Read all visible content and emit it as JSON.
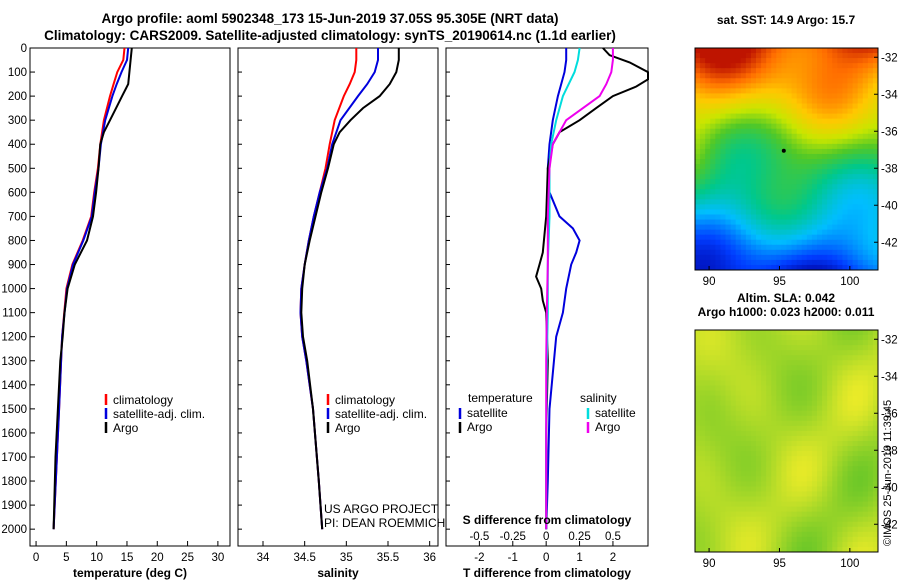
{
  "header": {
    "line1": "Argo profile: aoml 5902348_173 15-Jun-2019 37.05S 95.305E (NRT data)",
    "line2": "Climatology: CARS2009. Satellite-adjusted climatology: synTS_20190614.nc (1.1d earlier)"
  },
  "colors": {
    "argo": "#000000",
    "climatology": "#ff0000",
    "satellite": "#0000dd",
    "sat_salinity": "#00dddd",
    "arg_salinity": "#ee00ee"
  },
  "watermark": "©IMOS 25-Jun-2019 11:39:45",
  "credit": {
    "line1": "US ARGO PROJECT",
    "line2": "PI: DEAN ROEMMICH"
  },
  "chart_data": [
    {
      "type": "line",
      "id": "temperature",
      "xlabel": "temperature (deg C)",
      "xlim": [
        -1,
        32
      ],
      "ylim": [
        2070,
        0
      ],
      "xticks": [
        0,
        5,
        10,
        15,
        20,
        25,
        30
      ],
      "yticks": [
        0,
        100,
        200,
        300,
        400,
        500,
        600,
        700,
        800,
        900,
        1000,
        1100,
        1200,
        1300,
        1400,
        1500,
        1600,
        1700,
        1800,
        1900,
        2000
      ],
      "legend": [
        "climatology",
        "satellite-adj. clim.",
        "Argo"
      ],
      "series": [
        {
          "name": "climatology",
          "color": "#ff0000",
          "depth": [
            0,
            50,
            100,
            150,
            200,
            300,
            400,
            500,
            600,
            700,
            800,
            900,
            1000,
            1200,
            1500,
            2000
          ],
          "values": [
            14.6,
            14.4,
            13.4,
            12.8,
            12.2,
            11.2,
            10.6,
            10.2,
            9.6,
            9.1,
            7.7,
            6.0,
            5.0,
            4.3,
            3.8,
            2.9
          ]
        },
        {
          "name": "satellite-adj. clim.",
          "color": "#0000dd",
          "depth": [
            0,
            50,
            100,
            150,
            200,
            300,
            400,
            500,
            600,
            700,
            800,
            900,
            1000,
            1200,
            1500,
            2000
          ],
          "values": [
            15.2,
            15.0,
            14.1,
            13.3,
            12.6,
            11.4,
            10.7,
            10.3,
            9.7,
            9.2,
            7.8,
            6.1,
            5.1,
            4.3,
            3.8,
            2.9
          ]
        },
        {
          "name": "Argo",
          "color": "#000000",
          "depth": [
            0,
            50,
            100,
            150,
            200,
            250,
            300,
            350,
            400,
            500,
            600,
            700,
            800,
            900,
            1000,
            1100,
            1200,
            1300,
            1400,
            1500,
            1700,
            2000
          ],
          "values": [
            15.8,
            15.6,
            15.4,
            15.2,
            14.2,
            13.2,
            12.2,
            11.2,
            10.6,
            10.3,
            9.9,
            9.4,
            8.4,
            6.4,
            5.2,
            4.7,
            4.4,
            4.0,
            3.8,
            3.6,
            3.2,
            2.9
          ]
        }
      ]
    },
    {
      "type": "line",
      "id": "salinity",
      "xlabel": "salinity",
      "xlim": [
        33.7,
        36.1
      ],
      "ylim": [
        2070,
        0
      ],
      "xticks": [
        34,
        34.5,
        35,
        35.5,
        36
      ],
      "xticklabels": [
        "34",
        "34.5",
        "35",
        "35.5",
        "36"
      ],
      "legend": [
        "climatology",
        "satellite-adj. clim.",
        "Argo"
      ],
      "series": [
        {
          "name": "climatology",
          "color": "#ff0000",
          "depth": [
            0,
            50,
            100,
            150,
            200,
            300,
            400,
            500,
            600,
            700,
            800,
            900,
            1000,
            1100,
            1200,
            1300,
            1500,
            1800,
            2000
          ],
          "values": [
            35.12,
            35.12,
            35.1,
            35.04,
            34.97,
            34.86,
            34.8,
            34.75,
            34.68,
            34.61,
            34.55,
            34.5,
            34.46,
            34.45,
            34.47,
            34.52,
            34.6,
            34.67,
            34.71
          ]
        },
        {
          "name": "satellite-adj. clim.",
          "color": "#0000dd",
          "depth": [
            0,
            50,
            100,
            150,
            200,
            300,
            400,
            500,
            600,
            700,
            800,
            900,
            1000,
            1100,
            1200,
            1300,
            1500,
            1800,
            2000
          ],
          "values": [
            35.38,
            35.38,
            35.34,
            35.25,
            35.14,
            34.93,
            34.83,
            34.77,
            34.68,
            34.61,
            34.55,
            34.5,
            34.46,
            34.45,
            34.47,
            34.52,
            34.6,
            34.67,
            34.71
          ]
        },
        {
          "name": "Argo",
          "color": "#000000",
          "depth": [
            0,
            50,
            100,
            150,
            200,
            250,
            300,
            350,
            400,
            500,
            600,
            700,
            800,
            900,
            1000,
            1100,
            1200,
            1300,
            1500,
            1800,
            2000
          ],
          "values": [
            35.63,
            35.63,
            35.6,
            35.52,
            35.4,
            35.2,
            35.05,
            34.92,
            34.85,
            34.78,
            34.7,
            34.63,
            34.56,
            34.5,
            34.47,
            34.46,
            34.48,
            34.53,
            34.6,
            34.67,
            34.71
          ]
        }
      ]
    },
    {
      "type": "line",
      "id": "difference",
      "xlabel": "T difference from climatology",
      "xlabel2": "S difference from climatology",
      "xlim": [
        -3,
        3.05
      ],
      "ylim": [
        2070,
        0
      ],
      "xticks": [
        -2,
        -1,
        0,
        1,
        2
      ],
      "xticks2": [
        -2,
        -1,
        0,
        1,
        2
      ],
      "xticklabels2": [
        "-0.5",
        "-0.25",
        "0",
        "0.25",
        "0.5"
      ],
      "legend_titles": [
        "temperature",
        "salinity"
      ],
      "legend": [
        "satellite",
        "Argo",
        "satellite",
        "Argo"
      ],
      "series": [
        {
          "name": "temperature satellite",
          "color": "#0000dd",
          "depth": [
            0,
            50,
            100,
            200,
            300,
            400,
            500,
            600,
            700,
            750,
            800,
            850,
            900,
            1000,
            1100,
            1200,
            1500,
            1800,
            2000
          ],
          "values": [
            0.6,
            0.6,
            0.55,
            0.35,
            0.2,
            0.1,
            0.05,
            0.1,
            0.4,
            0.8,
            1.0,
            0.9,
            0.75,
            0.6,
            0.5,
            0.3,
            0.1,
            0.05,
            0.0
          ]
        },
        {
          "name": "temperature Argo",
          "color": "#000000",
          "depth": [
            0,
            30,
            60,
            100,
            130,
            160,
            200,
            250,
            300,
            350,
            400,
            500,
            700,
            850,
            900,
            950,
            1000,
            1050,
            1100,
            1300,
            1600,
            2000
          ],
          "values": [
            1.7,
            1.9,
            2.5,
            3.05,
            3.05,
            2.7,
            2.0,
            1.5,
            1.0,
            0.4,
            0.2,
            0.05,
            0.0,
            -0.1,
            -0.2,
            -0.3,
            -0.15,
            -0.1,
            0.0,
            0.05,
            0.0,
            0.0
          ]
        },
        {
          "name": "salinity satellite",
          "color": "#00dddd",
          "depth": [
            0,
            50,
            100,
            200,
            300,
            400,
            500,
            700,
            900,
            1100,
            1300,
            1600,
            2000
          ],
          "values": [
            1.0,
            0.95,
            0.85,
            0.5,
            0.3,
            0.15,
            0.1,
            0.1,
            0.05,
            0.05,
            0.02,
            0.0,
            0.0
          ]
        },
        {
          "name": "salinity Argo",
          "color": "#ee00ee",
          "depth": [
            0,
            50,
            100,
            150,
            200,
            300,
            400,
            500,
            700,
            900,
            1100,
            1300,
            1600,
            2000
          ],
          "values": [
            2.0,
            2.0,
            1.95,
            1.8,
            1.6,
            0.6,
            0.2,
            0.1,
            0.05,
            0.05,
            0.02,
            0.0,
            0.0,
            0.0
          ]
        }
      ]
    },
    {
      "type": "heatmap",
      "id": "sst_map",
      "title": "sat. SST: 14.9 Argo: 15.7",
      "xlim": [
        89,
        102
      ],
      "ylim": [
        -43.5,
        -31.5
      ],
      "xticks": [
        90,
        95,
        100
      ],
      "yticks": [
        -32,
        -34,
        -36,
        -38,
        -40,
        -42
      ],
      "yticklabels": [
        "-32",
        "-34",
        "-36",
        "-38",
        "-40",
        "-42"
      ]
    },
    {
      "type": "heatmap",
      "id": "sla_map",
      "title": "Altim. SLA: 0.042",
      "subtitle": "Argo h1000: 0.023 h2000: 0.011",
      "xlim": [
        89,
        102
      ],
      "ylim": [
        -43.5,
        -31.5
      ],
      "xticks": [
        90,
        95,
        100
      ],
      "yticks": [
        -32,
        -34,
        -36,
        -38,
        -40,
        -42
      ],
      "yticklabels": [
        "-32",
        "-34",
        "-36",
        "-38",
        "-40",
        "-42"
      ]
    }
  ]
}
